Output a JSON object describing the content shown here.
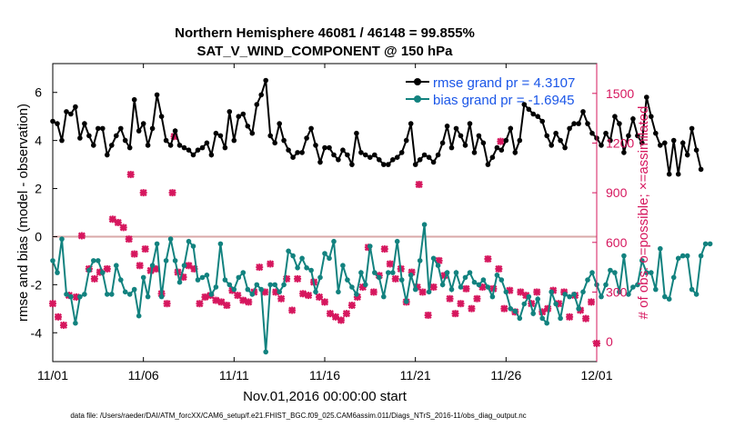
{
  "chart_data": {
    "type": "line",
    "title": "Northern Hemisphere 46081 / 46148 = 99.855%",
    "subtitle": "SAT_V_WIND_COMPONENT @ 150 hPa",
    "xlabel": "Nov.01,2016 00:00:00 start",
    "ylabel": "rmse and bias (model - observation)",
    "ylabel_right": "# of obs: o=possible; ×=assimilated",
    "xlim": [
      0,
      30
    ],
    "ylim": [
      -5.2,
      7.2
    ],
    "ylim_right": [
      -120,
      1680
    ],
    "x_ticks": [
      0,
      5,
      10,
      15,
      20,
      25,
      30
    ],
    "x_tick_labels": [
      "11/01",
      "11/06",
      "11/11",
      "11/16",
      "11/21",
      "11/26",
      "12/01"
    ],
    "y_ticks": [
      -4,
      -2,
      0,
      2,
      4,
      6
    ],
    "y_tick_labels": [
      "-4",
      "-2",
      "0",
      "2",
      "4",
      "6"
    ],
    "y_ticks_right": [
      0,
      300,
      600,
      900,
      1200,
      1500
    ],
    "y_tick_labels_right": [
      "0",
      "300",
      "600",
      "900",
      "1200",
      "1500"
    ],
    "grid": false,
    "legend_position": "top-right",
    "zero_line": true,
    "x_step": 0.25,
    "series": [
      {
        "name": "rmse grand pr = 4.3107",
        "color": "#000000",
        "values": [
          4.8,
          4.7,
          4.0,
          5.2,
          5.1,
          5.4,
          4.1,
          4.7,
          4.2,
          3.8,
          4.5,
          4.5,
          3.4,
          3.8,
          4.2,
          4.5,
          4.0,
          3.7,
          5.7,
          4.4,
          4.7,
          3.8,
          4.5,
          5.9,
          5.0,
          4.0,
          3.8,
          4.4,
          3.8,
          3.7,
          3.6,
          3.4,
          3.6,
          3.7,
          3.9,
          3.4,
          4.3,
          4.2,
          3.7,
          5.2,
          4.0,
          5.0,
          5.1,
          4.6,
          4.3,
          5.5,
          5.9,
          6.5,
          4.2,
          3.9,
          4.7,
          4.0,
          3.6,
          3.3,
          3.5,
          3.5,
          4.1,
          4.5,
          3.8,
          3.1,
          3.7,
          3.7,
          3.4,
          3.2,
          3.6,
          3.4,
          3.0,
          4.3,
          3.5,
          3.4,
          3.3,
          3.4,
          3.2,
          3.0,
          3.0,
          3.2,
          3.3,
          3.5,
          4.0,
          4.7,
          3.0,
          3.2,
          3.4,
          3.3,
          3.1,
          3.4,
          3.9,
          4.6,
          3.7,
          4.5,
          4.2,
          3.8,
          4.7,
          3.5,
          4.2,
          3.9,
          3.0,
          3.3,
          3.7,
          3.6,
          4.0,
          4.5,
          3.5,
          4.0,
          5.5,
          5.3,
          5.1,
          5.0,
          4.8,
          4.2,
          3.8,
          4.3,
          4.0,
          3.7,
          4.5,
          4.7,
          4.7,
          5.2,
          4.7,
          4.3,
          4.1,
          3.8,
          4.3,
          4.0,
          5.0,
          4.7,
          3.5,
          4.2,
          4.9,
          4.2,
          3.9,
          5.8,
          5.0,
          4.3,
          3.8,
          3.9,
          2.6,
          4.0,
          2.6,
          3.9,
          3.4,
          4.5,
          3.6,
          2.8
        ]
      },
      {
        "name": "bias grand pr = -1.6945",
        "color": "#12827f",
        "values": [
          -1.0,
          -1.5,
          -0.1,
          -2.4,
          -2.5,
          -3.6,
          -2.5,
          -2.4,
          -1.4,
          -1.0,
          -1.0,
          -1.5,
          -2.4,
          -2.4,
          -1.2,
          -1.8,
          -2.3,
          -2.4,
          -2.2,
          -3.3,
          -1.7,
          -2.5,
          -1.2,
          -0.3,
          -2.5,
          -1.0,
          -0.1,
          -1.0,
          -1.9,
          -1.2,
          -0.2,
          -0.4,
          -1.8,
          -1.7,
          -1.6,
          -2.4,
          -2.1,
          -0.3,
          -1.8,
          -2.0,
          -2.2,
          -1.7,
          -1.5,
          -2.2,
          -2.4,
          -2.0,
          -2.2,
          -4.8,
          -2.0,
          -2.0,
          -2.3,
          -2.0,
          -0.6,
          -0.8,
          -1.3,
          -0.9,
          -1.3,
          -1.4,
          -2.3,
          -1.7,
          -0.7,
          -0.9,
          -0.2,
          -2.3,
          -1.2,
          -1.8,
          -2.1,
          -2.4,
          -1.5,
          -2.0,
          -0.4,
          -1.5,
          -1.7,
          -2.5,
          -1.5,
          -1.5,
          -0.2,
          -1.8,
          -2.7,
          -1.6,
          -2.2,
          -1.0,
          0.5,
          -2.3,
          -0.9,
          -1.2,
          -2.0,
          -1.5,
          -2.2,
          -1.5,
          -2.1,
          -1.7,
          -1.5,
          -1.9,
          -2.0,
          -1.8,
          -2.1,
          -2.5,
          -1.6,
          -1.8,
          -2.3,
          -3.0,
          -3.1,
          -3.4,
          -2.8,
          -2.5,
          -3.2,
          -2.6,
          -3.4,
          -3.6,
          -2.3,
          -2.8,
          -3.4,
          -2.4,
          -2.5,
          -2.4,
          -3.0,
          -2.3,
          -1.8,
          -1.5,
          -2.0,
          -2.5,
          -2.0,
          -1.4,
          -1.5,
          -2.3,
          -0.8,
          -2.4,
          -2.1,
          -2.0,
          -1.0,
          -1.5,
          -1.5,
          -2.2,
          -0.5,
          -2.5,
          -2.6,
          -1.7,
          -0.9,
          -0.8,
          -0.8,
          -2.2,
          -2.4,
          -0.8,
          -0.3,
          -0.3
        ]
      }
    ],
    "obs_series": {
      "name": "assimilated",
      "color": "#d6175e",
      "x": [
        0.0,
        0.3,
        0.6,
        0.9,
        1.3,
        1.6,
        2.0,
        2.3,
        2.6,
        3.0,
        3.3,
        3.6,
        3.9,
        4.2,
        4.5,
        4.8,
        5.1,
        5.4,
        5.7,
        6.0,
        6.3,
        6.6,
        6.9,
        7.2,
        7.5,
        7.8,
        8.1,
        8.4,
        8.7,
        9.0,
        9.3,
        9.6,
        9.9,
        10.2,
        10.5,
        10.8,
        11.1,
        11.4,
        11.7,
        12.0,
        12.3,
        12.6,
        12.9,
        13.2,
        13.5,
        13.8,
        14.1,
        14.4,
        14.7,
        15.0,
        15.3,
        15.6,
        15.9,
        16.2,
        16.5,
        16.8,
        17.1,
        17.4,
        17.7,
        18.0,
        18.3,
        18.6,
        18.9,
        19.2,
        19.5,
        19.8,
        20.1,
        20.4,
        20.7,
        21.0,
        21.3,
        21.6,
        21.9,
        22.2,
        22.5,
        22.8,
        23.1,
        23.4,
        23.7,
        24.0,
        24.3,
        24.6,
        24.9,
        25.2,
        25.5,
        25.8,
        26.1,
        26.4,
        26.7,
        27.0,
        27.3,
        27.6,
        27.9,
        28.2,
        28.5,
        28.8,
        29.1,
        29.4,
        29.7,
        30.0,
        4.3,
        5.0,
        6.7,
        24.7,
        20.2
      ],
      "values": [
        230,
        150,
        100,
        280,
        270,
        640,
        440,
        380,
        420,
        440,
        740,
        720,
        690,
        620,
        530,
        460,
        560,
        430,
        440,
        290,
        230,
        900,
        420,
        390,
        460,
        440,
        230,
        270,
        280,
        250,
        240,
        220,
        310,
        280,
        250,
        240,
        300,
        450,
        300,
        470,
        300,
        260,
        380,
        190,
        380,
        290,
        280,
        360,
        270,
        240,
        170,
        150,
        130,
        170,
        220,
        270,
        330,
        570,
        300,
        400,
        560,
        470,
        380,
        440,
        240,
        420,
        330,
        300,
        160,
        330,
        490,
        400,
        260,
        170,
        230,
        320,
        200,
        260,
        330,
        500,
        320,
        440,
        200,
        310,
        180,
        300,
        280,
        230,
        300,
        180,
        200,
        310,
        230,
        300,
        150,
        280,
        190,
        140,
        240,
        -10,
        1010,
        900,
        1240,
        1210,
        950
      ]
    },
    "obs_total_series": {
      "name": "possible",
      "color": "#d6175e",
      "x": [],
      "values": []
    }
  },
  "footer": "data file: /Users/raeder/DAI/ATM_forcXX/CAM6_setup/f.e21.FHIST_BGC.f09_025.CAM6assim.011/Diags_NTrS_2016-11/obs_diag_output.nc"
}
